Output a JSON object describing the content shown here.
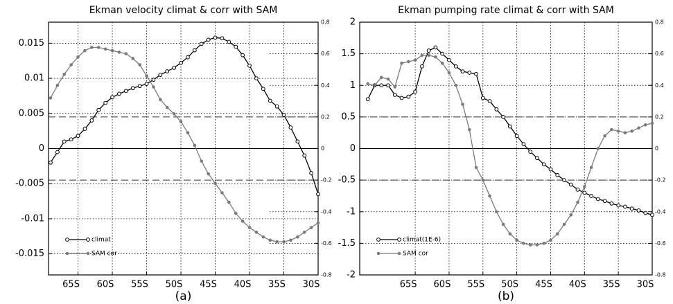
{
  "chart_data": [
    {
      "type": "line",
      "title": "Ekman velocity climat & corr with SAM",
      "panel_label": "(a)",
      "x": [
        -69,
        -68,
        -67,
        -66,
        -65,
        -64,
        -63,
        -62,
        -61,
        -60,
        -59,
        -58,
        -57,
        -56,
        -55,
        -54,
        -53,
        -52,
        -51,
        -50,
        -49,
        -48,
        -47,
        -46,
        -45,
        -44,
        -43,
        -42,
        -41,
        -40,
        -39,
        -38,
        -37,
        -36,
        -35,
        -34,
        -33,
        -32,
        -31,
        -30
      ],
      "xlim": [
        -69.3,
        -30
      ],
      "xticks": [
        {
          "value": -65,
          "label": "65S"
        },
        {
          "value": -60,
          "label": "60S"
        },
        {
          "value": -55,
          "label": "55S"
        },
        {
          "value": -50,
          "label": "50S"
        },
        {
          "value": -45,
          "label": "45S"
        },
        {
          "value": -40,
          "label": "40S"
        },
        {
          "value": -35,
          "label": "35S"
        },
        {
          "value": -30,
          "label": "30S"
        }
      ],
      "ylim": [
        -0.018,
        0.018
      ],
      "yticks": [
        0.015,
        0.01,
        0.005,
        0,
        -0.005,
        -0.01,
        -0.015
      ],
      "y2lim": [
        -0.8,
        0.8
      ],
      "y2ticks": [
        0.8,
        0.6,
        0.4,
        0.2,
        0,
        -0.2,
        -0.4,
        -0.6,
        -0.8
      ],
      "y2_reference_lines": [
        0.2,
        -0.2
      ],
      "grid": true,
      "series": [
        {
          "name": "climat",
          "color": "#000000",
          "marker": "open-circle",
          "axis": "y",
          "values": [
            -0.002,
            -0.0005,
            0.001,
            0.0013,
            0.0018,
            0.0028,
            0.004,
            0.0055,
            0.0065,
            0.0073,
            0.0078,
            0.0082,
            0.0086,
            0.0089,
            0.0092,
            0.0098,
            0.0105,
            0.011,
            0.0115,
            0.0122,
            0.013,
            0.014,
            0.0149,
            0.0155,
            0.0158,
            0.0157,
            0.0152,
            0.0145,
            0.0133,
            0.0118,
            0.01,
            0.0085,
            0.0068,
            0.006,
            0.0048,
            0.003,
            0.001,
            -0.001,
            -0.0035,
            -0.0065
          ]
        },
        {
          "name": "SAM cor",
          "color": "#7a7a7a",
          "marker": "dot",
          "axis": "y2",
          "values": [
            0.32,
            0.4,
            0.47,
            0.53,
            0.58,
            0.62,
            0.64,
            0.64,
            0.63,
            0.62,
            0.61,
            0.6,
            0.57,
            0.53,
            0.46,
            0.39,
            0.31,
            0.26,
            0.22,
            0.17,
            0.1,
            0.02,
            -0.08,
            -0.16,
            -0.22,
            -0.28,
            -0.34,
            -0.41,
            -0.46,
            -0.5,
            -0.53,
            -0.56,
            -0.58,
            -0.59,
            -0.59,
            -0.58,
            -0.56,
            -0.53,
            -0.5,
            -0.47
          ]
        }
      ]
    },
    {
      "type": "line",
      "title": "Ekman pumping rate climat & corr with SAM",
      "panel_label": "(b)",
      "x": [
        -72,
        -71,
        -70,
        -69,
        -68,
        -67,
        -66,
        -65,
        -64,
        -63,
        -62,
        -61,
        -60,
        -59,
        -58,
        -57,
        -56,
        -55,
        -54,
        -53,
        -52,
        -51,
        -50,
        -49,
        -48,
        -47,
        -46,
        -45,
        -44,
        -43,
        -42,
        -41,
        -40,
        -39,
        -38,
        -37,
        -36,
        -35,
        -34,
        -33,
        -32,
        -31,
        -30
      ],
      "xlim": [
        -73.2,
        -30
      ],
      "xticks": [
        {
          "value": -65,
          "label": "65S"
        },
        {
          "value": -60,
          "label": "60S"
        },
        {
          "value": -55,
          "label": "55S"
        },
        {
          "value": -50,
          "label": "50S"
        },
        {
          "value": -45,
          "label": "45S"
        },
        {
          "value": -40,
          "label": "40S"
        },
        {
          "value": -35,
          "label": "35S"
        },
        {
          "value": -30,
          "label": "30S"
        }
      ],
      "ylim": [
        -2,
        2
      ],
      "yticks": [
        2,
        1.5,
        1,
        0.5,
        0,
        -0.5,
        -1,
        -1.5,
        -2
      ],
      "y2lim": [
        -0.8,
        0.8
      ],
      "y2ticks": [
        0.8,
        0.6,
        0.4,
        0.2,
        0,
        -0.2,
        -0.4,
        -0.6,
        -0.8
      ],
      "y2_reference_lines": [
        0.2,
        -0.2
      ],
      "grid": true,
      "series": [
        {
          "name": "climat(1E-6)",
          "color": "#000000",
          "marker": "open-circle",
          "axis": "y",
          "values": [
            0.78,
            1.0,
            1.0,
            1.0,
            0.85,
            0.8,
            0.82,
            0.9,
            1.3,
            1.55,
            1.6,
            1.5,
            1.4,
            1.3,
            1.22,
            1.2,
            1.18,
            0.8,
            0.75,
            0.62,
            0.5,
            0.35,
            0.2,
            0.07,
            -0.05,
            -0.15,
            -0.25,
            -0.33,
            -0.42,
            -0.5,
            -0.57,
            -0.65,
            -0.7,
            -0.75,
            -0.8,
            -0.83,
            -0.87,
            -0.9,
            -0.92,
            -0.95,
            -0.98,
            -1.02,
            -1.05
          ]
        },
        {
          "name": "SAM cor",
          "color": "#7a7a7a",
          "marker": "dot",
          "axis": "y2",
          "values": [
            0.41,
            0.4,
            0.45,
            0.44,
            0.39,
            0.54,
            0.55,
            0.56,
            0.59,
            0.59,
            0.58,
            0.54,
            0.48,
            0.4,
            0.28,
            0.12,
            -0.12,
            -0.2,
            -0.3,
            -0.4,
            -0.48,
            -0.54,
            -0.58,
            -0.6,
            -0.61,
            -0.61,
            -0.6,
            -0.58,
            -0.54,
            -0.48,
            -0.42,
            -0.34,
            -0.24,
            -0.12,
            0,
            0.08,
            0.12,
            0.11,
            0.1,
            0.11,
            0.13,
            0.15,
            0.16
          ]
        }
      ]
    }
  ]
}
